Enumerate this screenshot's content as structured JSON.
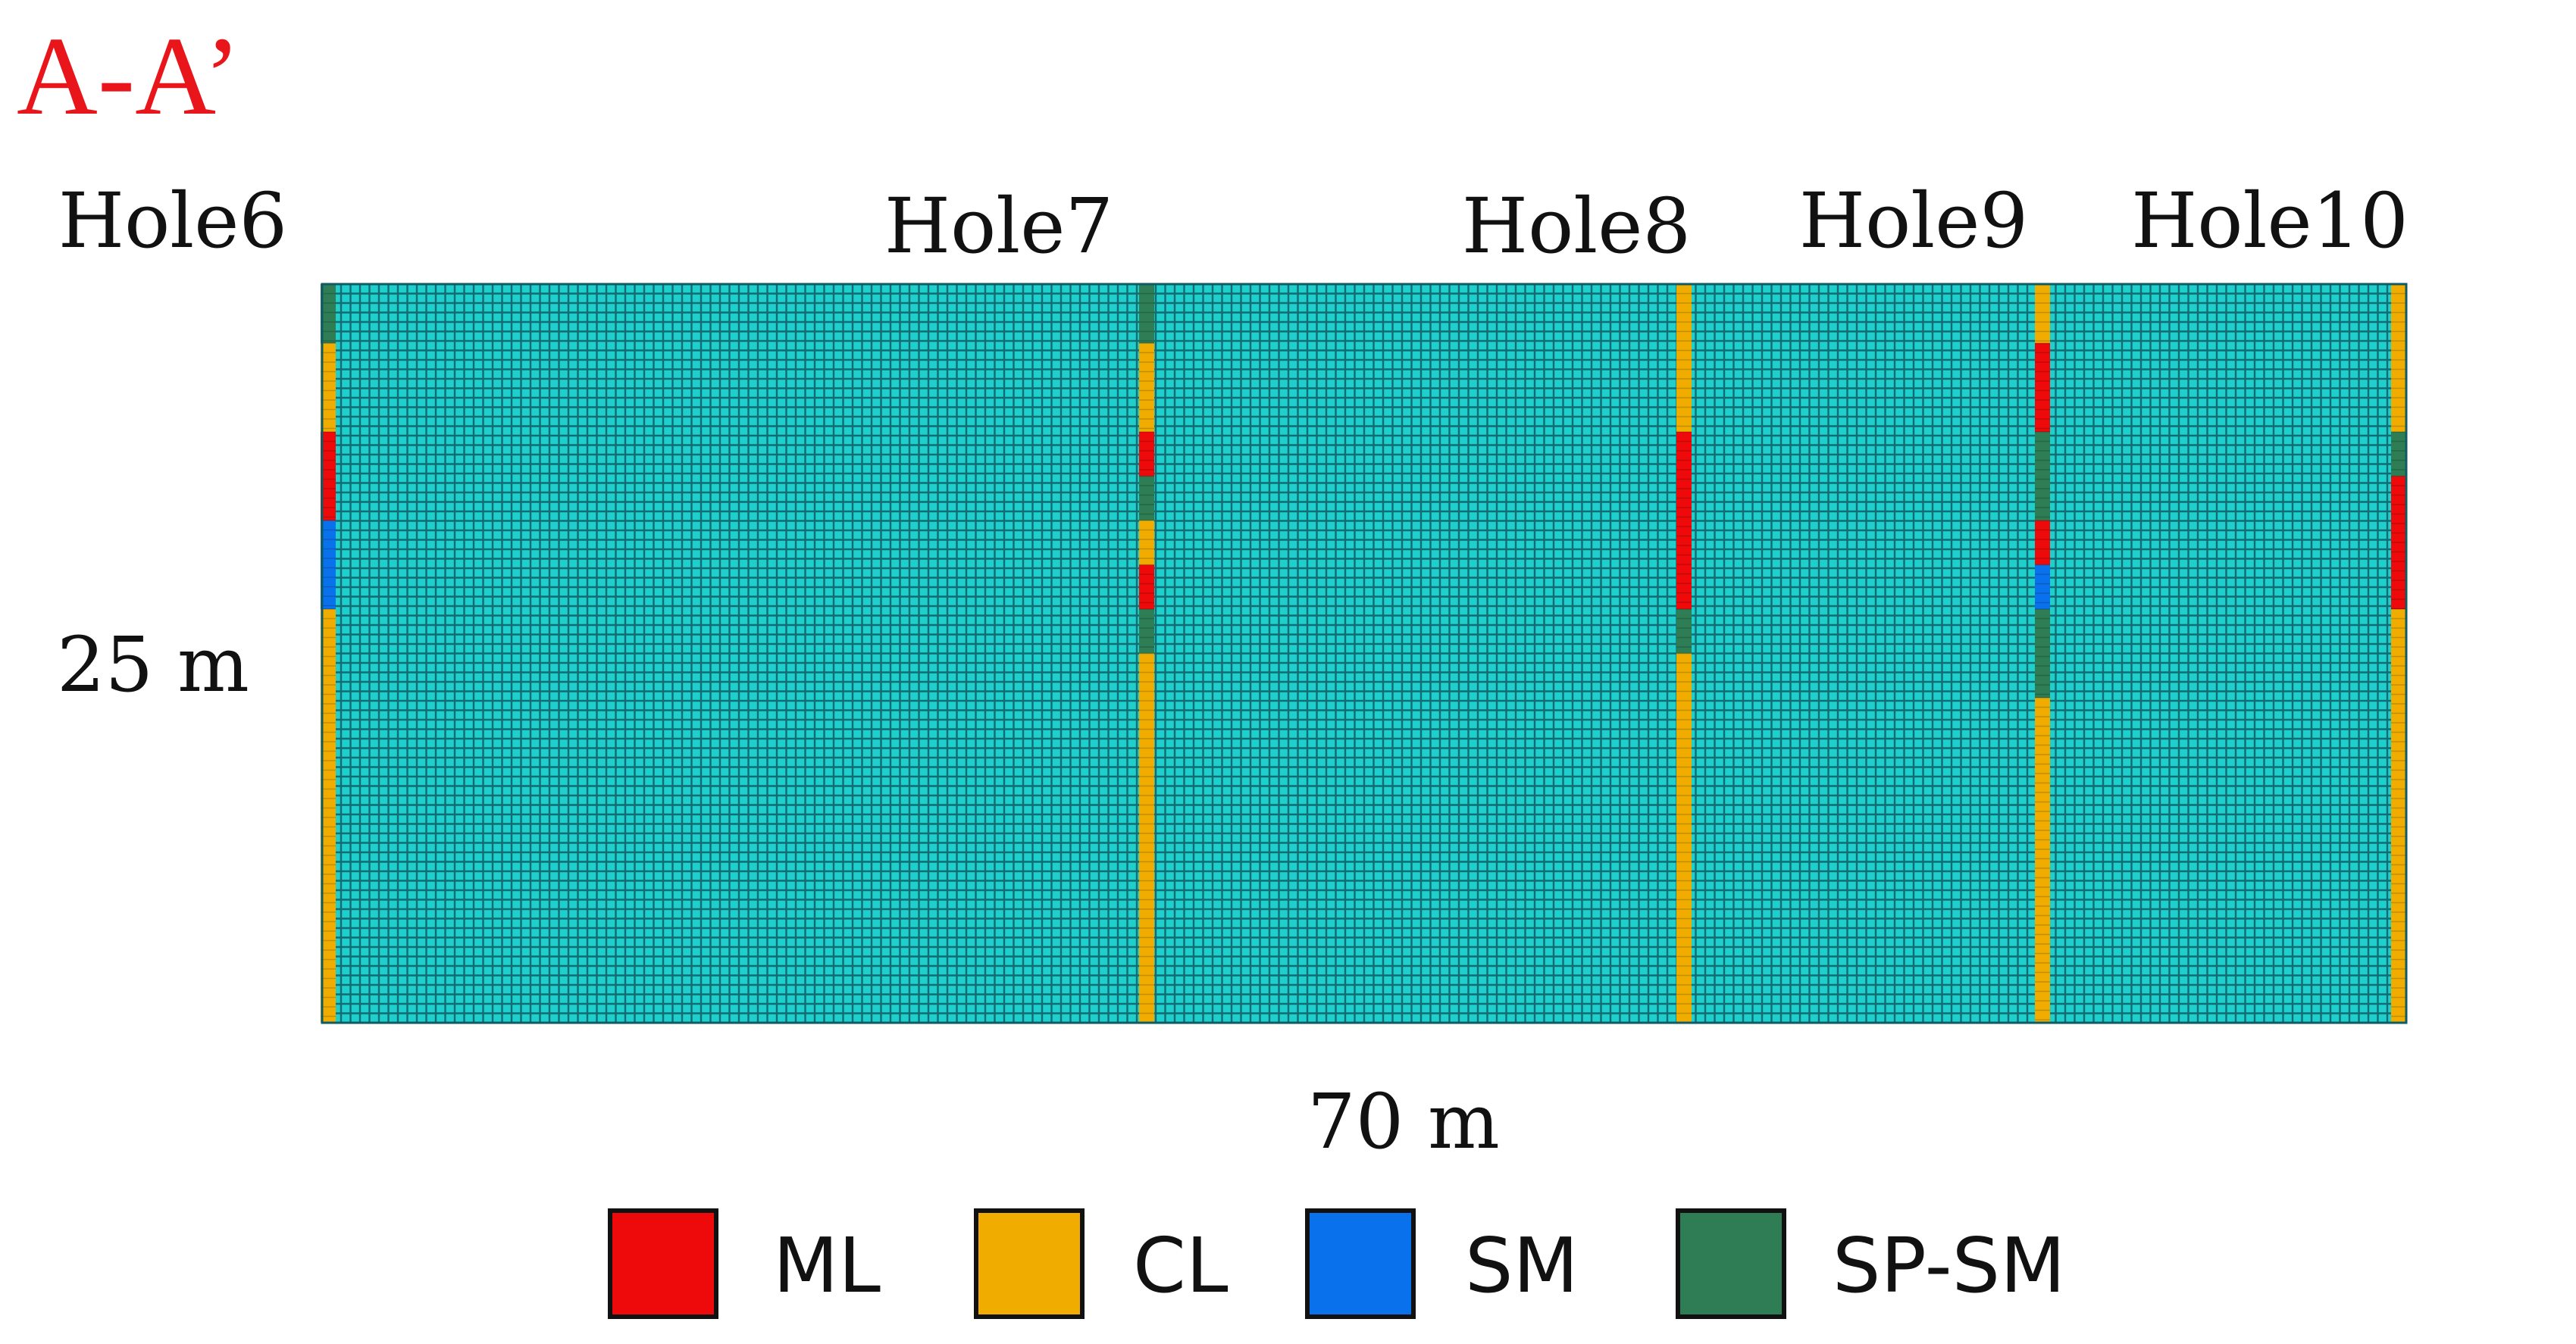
{
  "section_title": "A-A’",
  "width_label": "70 m",
  "depth_label": "25 m",
  "colors": {
    "mesh": "#1fcfcc",
    "grid_line": "#0f5b63",
    "border": "#0f5b63",
    "title": "#e8151b",
    "text": "#111111"
  },
  "soil_types": [
    {
      "code": "ML",
      "color": "#ee0a0a"
    },
    {
      "code": "CL",
      "color": "#f0ad00"
    },
    {
      "code": "SM",
      "color": "#0a71ec"
    },
    {
      "code": "SP-SM",
      "color": "#2e7d54"
    }
  ],
  "boreholes": [
    {
      "name": "Hole6",
      "layers": [
        {
          "soil": "SP-SM",
          "from": 0,
          "to": 2
        },
        {
          "soil": "CL",
          "from": 2,
          "to": 5
        },
        {
          "soil": "ML",
          "from": 5,
          "to": 8
        },
        {
          "soil": "SM",
          "from": 8,
          "to": 11
        },
        {
          "soil": "CL",
          "from": 11,
          "to": 25
        }
      ]
    },
    {
      "name": "Hole7",
      "layers": [
        {
          "soil": "SP-SM",
          "from": 0,
          "to": 2
        },
        {
          "soil": "CL",
          "from": 2,
          "to": 5
        },
        {
          "soil": "ML",
          "from": 5,
          "to": 6.5
        },
        {
          "soil": "SP-SM",
          "from": 6.5,
          "to": 8
        },
        {
          "soil": "CL",
          "from": 8,
          "to": 9.5
        },
        {
          "soil": "ML",
          "from": 9.5,
          "to": 11
        },
        {
          "soil": "SP-SM",
          "from": 11,
          "to": 12.5
        },
        {
          "soil": "CL",
          "from": 12.5,
          "to": 25
        }
      ]
    },
    {
      "name": "Hole8",
      "layers": [
        {
          "soil": "CL",
          "from": 0,
          "to": 5
        },
        {
          "soil": "ML",
          "from": 5,
          "to": 11
        },
        {
          "soil": "SP-SM",
          "from": 11,
          "to": 12.5
        },
        {
          "soil": "CL",
          "from": 12.5,
          "to": 25
        }
      ]
    },
    {
      "name": "Hole9",
      "layers": [
        {
          "soil": "CL",
          "from": 0,
          "to": 2
        },
        {
          "soil": "ML",
          "from": 2,
          "to": 5
        },
        {
          "soil": "SP-SM",
          "from": 5,
          "to": 8
        },
        {
          "soil": "ML",
          "from": 8,
          "to": 9.5
        },
        {
          "soil": "SM",
          "from": 9.5,
          "to": 11
        },
        {
          "soil": "SP-SM",
          "from": 11,
          "to": 14
        },
        {
          "soil": "CL",
          "from": 14,
          "to": 25
        }
      ]
    },
    {
      "name": "Hole10",
      "layers": [
        {
          "soil": "CL",
          "from": 0,
          "to": 5
        },
        {
          "soil": "SP-SM",
          "from": 5,
          "to": 6.5
        },
        {
          "soil": "ML",
          "from": 6.5,
          "to": 11
        },
        {
          "soil": "CL",
          "from": 11,
          "to": 25
        }
      ]
    }
  ],
  "section_extent": {
    "width_m": 70,
    "depth_m": 25
  }
}
